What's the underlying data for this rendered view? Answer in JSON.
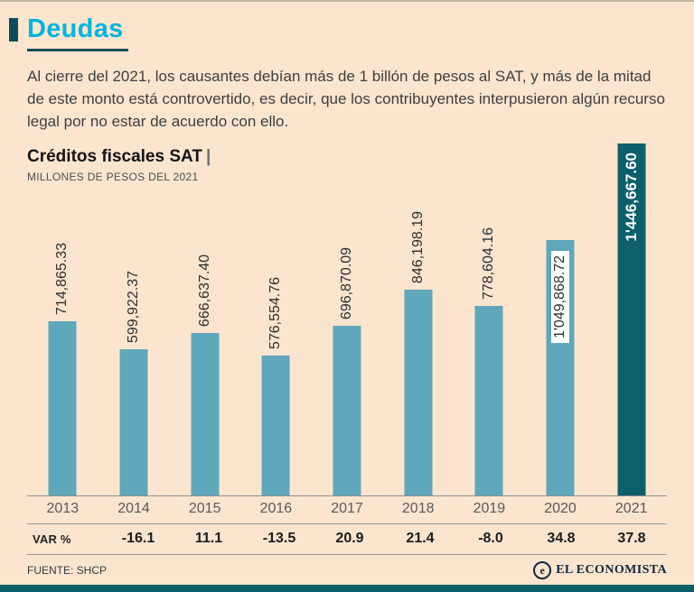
{
  "page": {
    "kicker": "Deudas",
    "intro": "Al cierre del 2021, los causantes debían más de 1 billón de pesos al SAT, y más de la mitad de este monto está controvertido, es decir, que los contribuyentes interpusieron algún recurso legal por no estar de acuerdo con ello.",
    "source_label": "FUENTE: SHCP",
    "brand": "EL ECONOMISTA",
    "brand_glyph": "e"
  },
  "colors": {
    "background": "#fbe5cf",
    "accent_cyan": "#00b5dd",
    "dark_teal": "#0b4d5c",
    "bottom_strip": "#0b5f6b"
  },
  "chart_data": {
    "type": "bar",
    "title": "Créditos fiscales SAT",
    "title_separator": "|",
    "subtitle": "MILLONES DE PESOS DEL 2021",
    "categories": [
      "2013",
      "2014",
      "2015",
      "2016",
      "2017",
      "2018",
      "2019",
      "2020",
      "2021"
    ],
    "values": [
      714865.33,
      599922.37,
      666637.4,
      576554.76,
      696870.09,
      846198.19,
      778604.16,
      1049868.72,
      1446667.6
    ],
    "value_labels": [
      "714,865.33",
      "599,922.37",
      "666,637.40",
      "576,554.76",
      "696,870.09",
      "846,198.19",
      "778,604.16",
      "1'049,868.72",
      "1'446,667.60"
    ],
    "var_row_label": "VAR %",
    "var_values": [
      "",
      "-16.1",
      "11.1",
      "-13.5",
      "20.9",
      "21.4",
      "-8.0",
      "34.8",
      "37.8"
    ],
    "ylim": [
      0,
      1446667.6
    ],
    "grid": false,
    "legend": "none",
    "bar_color": "#5fa7ba",
    "highlight_color": "#0d5f6a",
    "highlight_index": 8,
    "inside_label_indices": [
      7
    ]
  }
}
